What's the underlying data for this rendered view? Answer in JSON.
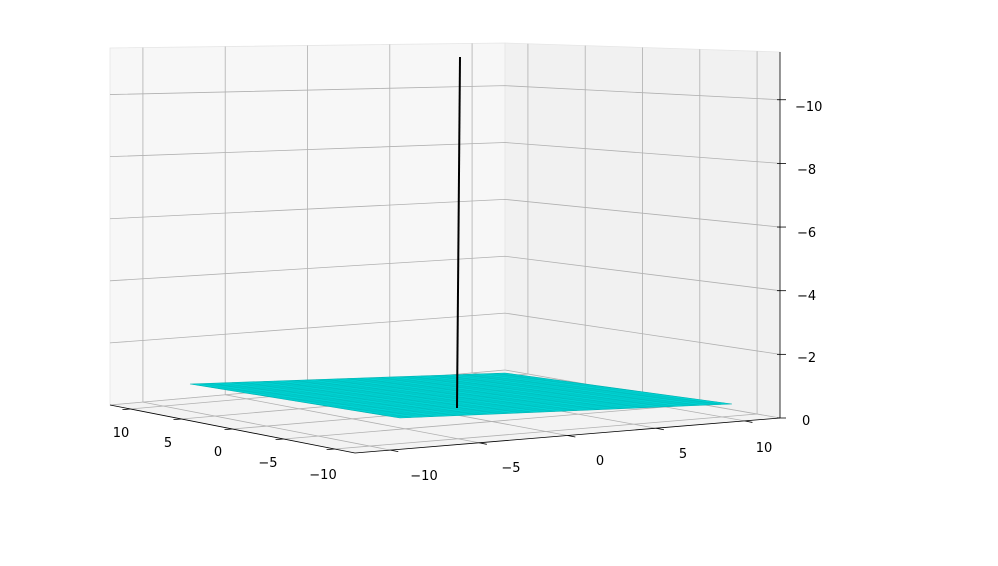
{
  "chart_data": {
    "type": "surface3d",
    "title": "",
    "xlabel": "",
    "ylabel": "",
    "zlabel": "",
    "grid": true,
    "surface_color": "#00d8d8",
    "line_color": "#000000",
    "x_axis": {
      "range": [
        -12,
        12
      ],
      "ticks": [
        -10,
        -5,
        0,
        5,
        10
      ],
      "tick_labels": [
        "−10",
        "−5",
        "0",
        "5",
        "10"
      ]
    },
    "y_axis": {
      "range": [
        -12,
        12
      ],
      "ticks": [
        10,
        5,
        0,
        -5,
        -10
      ],
      "tick_labels": [
        "10",
        "5",
        "0",
        "−5",
        "−10"
      ]
    },
    "z_axis": {
      "range": [
        0,
        -11.5
      ],
      "ticks": [
        -10,
        -8,
        -6,
        -4,
        -2,
        0
      ],
      "tick_labels": [
        "−10",
        "−8",
        "−6",
        "−4",
        "−2",
        "0"
      ]
    },
    "surface": {
      "z": 0,
      "x_range": [
        -12,
        12
      ],
      "y_range": [
        -12,
        12
      ]
    },
    "vertical_line": {
      "x": 0,
      "y": 0,
      "z_range": [
        0,
        -11.5
      ]
    }
  }
}
